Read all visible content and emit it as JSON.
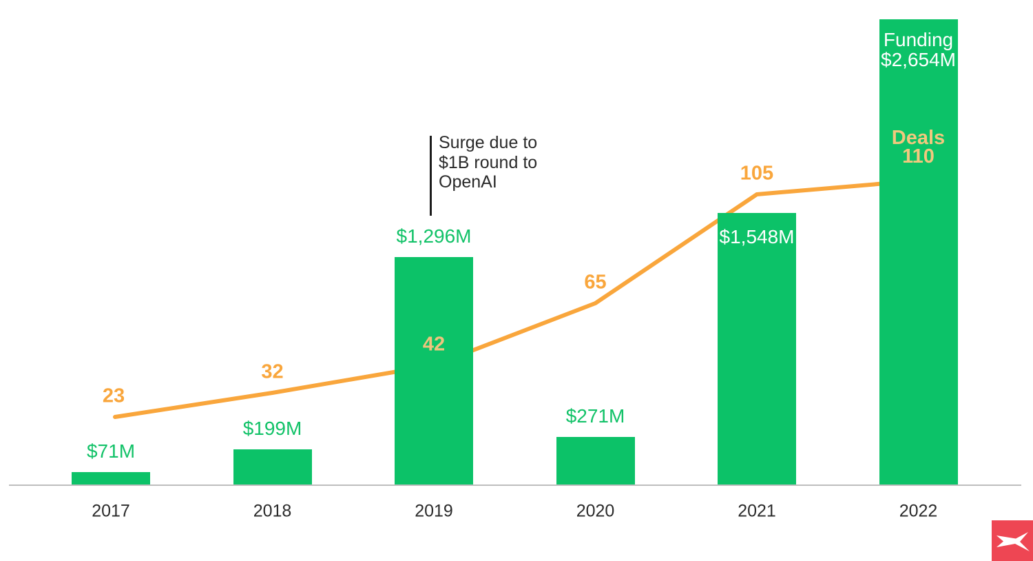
{
  "page": {
    "background": "#ffffff"
  },
  "chart_data": {
    "type": "combo",
    "subtype": "bar+line",
    "title": "",
    "categories": [
      "2017",
      "2018",
      "2019",
      "2020",
      "2021",
      "2022"
    ],
    "series": [
      {
        "name": "Funding",
        "type": "bar",
        "unit": "$M",
        "values": [
          71,
          199,
          1296,
          271,
          1548,
          2654
        ],
        "labels": [
          "$71M",
          "$199M",
          "$1,296M",
          "$271M",
          "$1,548M",
          "$2,654M"
        ],
        "label_placements": [
          "above",
          "above",
          "above",
          "above",
          "inside",
          "inside"
        ],
        "label_colors": [
          "#12c268",
          "#12c268",
          "#12c268",
          "#12c268",
          "#ffffff",
          "#ffffff"
        ],
        "bar_color": "#0cc268",
        "prefix_label": "Funding",
        "prefix_on_index": 5
      },
      {
        "name": "Deals",
        "type": "line",
        "values": [
          23,
          32,
          42,
          65,
          105,
          110
        ],
        "labels": [
          "23",
          "32",
          "42",
          "65",
          "105",
          "110"
        ],
        "label_colors": [
          "#f9a63c",
          "#f9a63c",
          "#efc47d",
          "#f9a63c",
          "#f9a63c",
          "#f2c87e"
        ],
        "line_color": "#f9a63c",
        "prefix_label": "Deals",
        "prefix_on_index": 5
      }
    ],
    "annotation": {
      "lines": [
        "Surge due to",
        "$1B round to",
        "OpenAI"
      ],
      "target_category": "2019",
      "pointer_color": "#1c1c1c",
      "text_color": "#2a2a2a"
    },
    "axis": {
      "baseline_color": "#bdbdbd",
      "tick_label_color": "#2b2b2b"
    },
    "legend": "none",
    "grid": "off",
    "ylim_bar": [
      0,
      2760
    ],
    "ylim_line": [
      0,
      177
    ]
  },
  "logo": {
    "name": "xtb-logo",
    "background_color": "#ee4653",
    "glyph": "stylized-x",
    "glyph_color": "#ffffff"
  }
}
